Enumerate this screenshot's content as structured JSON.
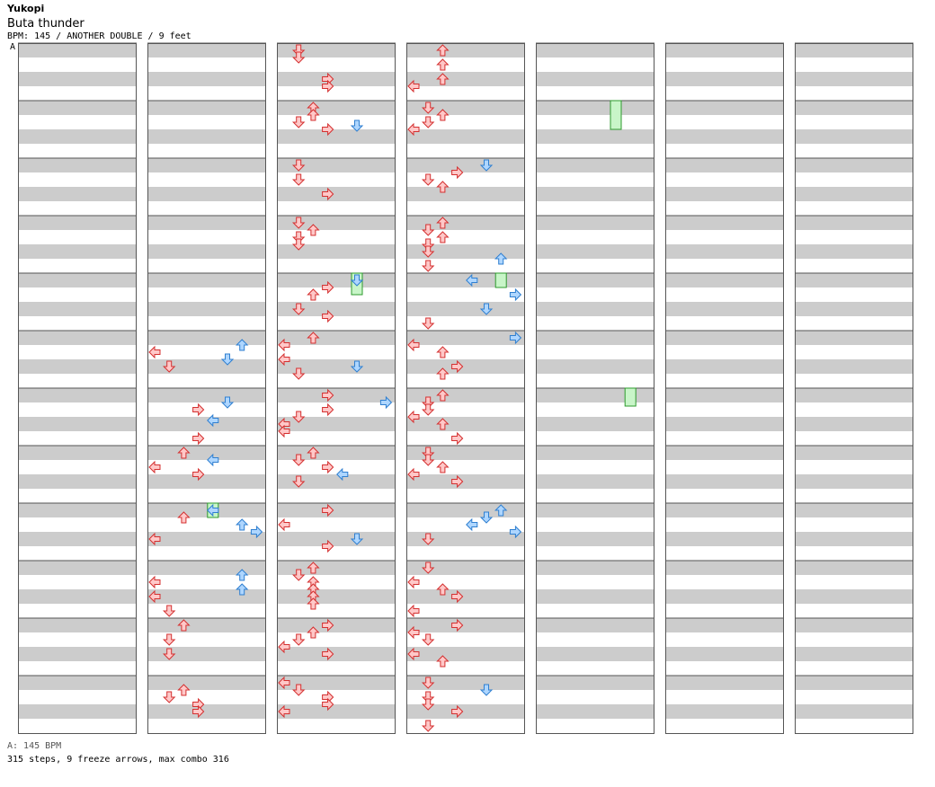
{
  "artist": "Yukopi",
  "title": "Buta thunder",
  "meta": "BPM: 145 / ANOTHER DOUBLE / 9 feet",
  "bpm_marker": "A",
  "bpm_info": "A: 145 BPM",
  "stats": "315 steps, 9 freeze arrows, max combo 316",
  "colors": {
    "red_fill": "#ffc8c8",
    "red_stroke": "#d43030",
    "blue_fill": "#aed6ff",
    "blue_stroke": "#2f7fd0",
    "freeze_fill": "#c8f5c8",
    "freeze_stroke": "#2e9a2e",
    "band": "#cccccc"
  },
  "chart": {
    "columns": 7,
    "measures_per_column": 12,
    "lanes": 8,
    "notes": [
      [
        1,
        5,
        2,
        "b",
        "up"
      ],
      [
        1,
        5,
        4,
        "r",
        "left"
      ],
      [
        1,
        5,
        6,
        "b",
        "down"
      ],
      [
        1,
        5,
        8,
        "r",
        "down"
      ],
      [
        1,
        6,
        2,
        "b",
        "down"
      ],
      [
        1,
        6,
        4,
        "r",
        "right"
      ],
      [
        1,
        6,
        7,
        "b",
        "left"
      ],
      [
        1,
        6,
        12,
        "r",
        "right"
      ],
      [
        1,
        7,
        0,
        "r",
        "up"
      ],
      [
        1,
        7,
        2,
        "b",
        "left"
      ],
      [
        1,
        7,
        4,
        "r",
        "left"
      ],
      [
        1,
        7,
        6,
        "r",
        "right"
      ],
      [
        1,
        8,
        0,
        "b",
        "left"
      ],
      [
        1,
        8,
        2,
        "r",
        "up"
      ],
      [
        1,
        8,
        4,
        "b",
        "up"
      ],
      [
        1,
        8,
        6,
        "b",
        "right"
      ],
      [
        1,
        8,
        8,
        "r",
        "left"
      ],
      [
        1,
        9,
        2,
        "b",
        "up"
      ],
      [
        1,
        9,
        4,
        "r",
        "left"
      ],
      [
        1,
        9,
        6,
        "b",
        "up"
      ],
      [
        1,
        9,
        8,
        "r",
        "left"
      ],
      [
        1,
        9,
        12,
        "r",
        "down"
      ],
      [
        1,
        10,
        0,
        "r",
        "up"
      ],
      [
        1,
        10,
        4,
        "r",
        "down"
      ],
      [
        1,
        10,
        8,
        "r",
        "down"
      ],
      [
        1,
        11,
        2,
        "r",
        "up"
      ],
      [
        1,
        11,
        4,
        "r",
        "down"
      ],
      [
        1,
        11,
        6,
        "r",
        "right"
      ],
      [
        1,
        11,
        8,
        "r",
        "right"
      ],
      [
        2,
        0,
        0,
        "r",
        "down"
      ],
      [
        2,
        0,
        2,
        "r",
        "down"
      ],
      [
        2,
        0,
        8,
        "r",
        "right"
      ],
      [
        2,
        0,
        10,
        "r",
        "right"
      ],
      [
        2,
        1,
        0,
        "r",
        "up"
      ],
      [
        2,
        1,
        2,
        "r",
        "up"
      ],
      [
        2,
        1,
        4,
        "r",
        "down"
      ],
      [
        2,
        1,
        5,
        "b",
        "down"
      ],
      [
        2,
        1,
        6,
        "r",
        "right"
      ],
      [
        2,
        2,
        0,
        "r",
        "down"
      ],
      [
        2,
        2,
        4,
        "r",
        "down"
      ],
      [
        2,
        2,
        8,
        "r",
        "right"
      ],
      [
        2,
        3,
        0,
        "r",
        "down"
      ],
      [
        2,
        3,
        2,
        "r",
        "up"
      ],
      [
        2,
        3,
        4,
        "r",
        "down"
      ],
      [
        2,
        3,
        6,
        "r",
        "down"
      ],
      [
        2,
        4,
        0,
        "b",
        "down"
      ],
      [
        2,
        4,
        2,
        "r",
        "right"
      ],
      [
        2,
        4,
        4,
        "r",
        "up"
      ],
      [
        2,
        4,
        8,
        "r",
        "down"
      ],
      [
        2,
        4,
        10,
        "r",
        "right"
      ],
      [
        2,
        5,
        0,
        "r",
        "up"
      ],
      [
        2,
        5,
        2,
        "r",
        "left"
      ],
      [
        2,
        5,
        6,
        "r",
        "left"
      ],
      [
        2,
        5,
        8,
        "b",
        "down"
      ],
      [
        2,
        5,
        10,
        "r",
        "down"
      ],
      [
        2,
        6,
        0,
        "r",
        "right"
      ],
      [
        2,
        6,
        2,
        "b",
        "right"
      ],
      [
        2,
        6,
        4,
        "r",
        "right"
      ],
      [
        2,
        6,
        6,
        "r",
        "down"
      ],
      [
        2,
        6,
        8,
        "r",
        "left"
      ],
      [
        2,
        6,
        10,
        "r",
        "left"
      ],
      [
        2,
        7,
        0,
        "r",
        "up"
      ],
      [
        2,
        7,
        2,
        "r",
        "down"
      ],
      [
        2,
        7,
        4,
        "r",
        "right"
      ],
      [
        2,
        7,
        6,
        "b",
        "left"
      ],
      [
        2,
        7,
        8,
        "r",
        "down"
      ],
      [
        2,
        8,
        0,
        "r",
        "right"
      ],
      [
        2,
        8,
        4,
        "r",
        "left"
      ],
      [
        2,
        8,
        8,
        "b",
        "down"
      ],
      [
        2,
        8,
        10,
        "r",
        "right"
      ],
      [
        2,
        9,
        0,
        "r",
        "up"
      ],
      [
        2,
        9,
        2,
        "r",
        "down"
      ],
      [
        2,
        9,
        4,
        "r",
        "up"
      ],
      [
        2,
        9,
        6,
        "r",
        "up"
      ],
      [
        2,
        9,
        8,
        "r",
        "up"
      ],
      [
        2,
        9,
        10,
        "r",
        "up"
      ],
      [
        2,
        10,
        0,
        "r",
        "right"
      ],
      [
        2,
        10,
        2,
        "r",
        "up"
      ],
      [
        2,
        10,
        4,
        "r",
        "down"
      ],
      [
        2,
        10,
        6,
        "r",
        "left"
      ],
      [
        2,
        10,
        8,
        "r",
        "right"
      ],
      [
        2,
        11,
        0,
        "r",
        "left"
      ],
      [
        2,
        11,
        2,
        "r",
        "down"
      ],
      [
        2,
        11,
        4,
        "r",
        "right"
      ],
      [
        2,
        11,
        6,
        "r",
        "right"
      ],
      [
        2,
        11,
        8,
        "r",
        "left"
      ],
      [
        3,
        0,
        0,
        "r",
        "up"
      ],
      [
        3,
        0,
        4,
        "r",
        "up"
      ],
      [
        3,
        0,
        8,
        "r",
        "up"
      ],
      [
        3,
        0,
        10,
        "r",
        "left"
      ],
      [
        3,
        1,
        0,
        "r",
        "down"
      ],
      [
        3,
        1,
        2,
        "r",
        "up"
      ],
      [
        3,
        1,
        4,
        "r",
        "down"
      ],
      [
        3,
        1,
        6,
        "r",
        "left"
      ],
      [
        3,
        2,
        0,
        "b",
        "down"
      ],
      [
        3,
        2,
        2,
        "r",
        "right"
      ],
      [
        3,
        2,
        4,
        "r",
        "down"
      ],
      [
        3,
        2,
        6,
        "r",
        "up"
      ],
      [
        3,
        3,
        0,
        "r",
        "up"
      ],
      [
        3,
        3,
        2,
        "r",
        "down"
      ],
      [
        3,
        3,
        4,
        "r",
        "up"
      ],
      [
        3,
        3,
        6,
        "r",
        "down"
      ],
      [
        3,
        3,
        8,
        "r",
        "down"
      ],
      [
        3,
        3,
        10,
        "b",
        "up"
      ],
      [
        3,
        3,
        12,
        "r",
        "down"
      ],
      [
        3,
        4,
        0,
        "b",
        "left"
      ],
      [
        3,
        4,
        4,
        "b",
        "right"
      ],
      [
        3,
        4,
        8,
        "b",
        "down"
      ],
      [
        3,
        4,
        12,
        "r",
        "down"
      ],
      [
        3,
        5,
        0,
        "b",
        "right"
      ],
      [
        3,
        5,
        2,
        "r",
        "left"
      ],
      [
        3,
        5,
        4,
        "r",
        "up"
      ],
      [
        3,
        5,
        8,
        "r",
        "right"
      ],
      [
        3,
        5,
        10,
        "r",
        "up"
      ],
      [
        3,
        6,
        0,
        "r",
        "up"
      ],
      [
        3,
        6,
        2,
        "r",
        "down"
      ],
      [
        3,
        6,
        4,
        "r",
        "down"
      ],
      [
        3,
        6,
        6,
        "r",
        "left"
      ],
      [
        3,
        6,
        8,
        "r",
        "up"
      ],
      [
        3,
        6,
        12,
        "r",
        "right"
      ],
      [
        3,
        7,
        0,
        "r",
        "down"
      ],
      [
        3,
        7,
        2,
        "r",
        "down"
      ],
      [
        3,
        7,
        4,
        "r",
        "up"
      ],
      [
        3,
        7,
        6,
        "r",
        "left"
      ],
      [
        3,
        7,
        8,
        "r",
        "right"
      ],
      [
        3,
        8,
        0,
        "b",
        "up"
      ],
      [
        3,
        8,
        2,
        "b",
        "down"
      ],
      [
        3,
        8,
        4,
        "b",
        "left"
      ],
      [
        3,
        8,
        6,
        "b",
        "right"
      ],
      [
        3,
        8,
        8,
        "r",
        "down"
      ],
      [
        3,
        9,
        0,
        "r",
        "down"
      ],
      [
        3,
        9,
        4,
        "r",
        "left"
      ],
      [
        3,
        9,
        6,
        "r",
        "up"
      ],
      [
        3,
        9,
        8,
        "r",
        "right"
      ],
      [
        3,
        9,
        12,
        "r",
        "left"
      ],
      [
        3,
        10,
        0,
        "r",
        "right"
      ],
      [
        3,
        10,
        2,
        "r",
        "left"
      ],
      [
        3,
        10,
        4,
        "r",
        "down"
      ],
      [
        3,
        10,
        8,
        "r",
        "left"
      ],
      [
        3,
        10,
        10,
        "r",
        "up"
      ],
      [
        3,
        11,
        0,
        "r",
        "down"
      ],
      [
        3,
        11,
        2,
        "b",
        "down"
      ],
      [
        3,
        11,
        4,
        "r",
        "down"
      ],
      [
        3,
        11,
        6,
        "r",
        "down"
      ],
      [
        3,
        11,
        8,
        "r",
        "right"
      ],
      [
        3,
        11,
        12,
        "r",
        "down"
      ]
    ],
    "freezes": [
      [
        1,
        8,
        0,
        2,
        "b",
        "left"
      ],
      [
        2,
        4,
        0,
        4,
        "b",
        "down"
      ],
      [
        3,
        4,
        0,
        2,
        "b",
        "up"
      ],
      [
        4,
        1,
        0,
        6,
        "b",
        "down"
      ],
      [
        4,
        6,
        0,
        3,
        "b",
        "up"
      ]
    ]
  }
}
